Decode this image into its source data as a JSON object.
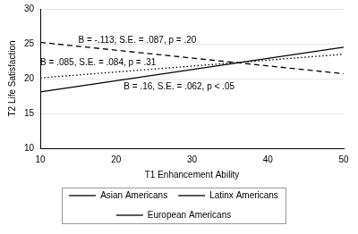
{
  "chart_data": {
    "type": "line",
    "x_label": "T1 Enhancement Ability",
    "y_label": "T2 Life Satisfaction",
    "x": [
      10,
      50
    ],
    "series": [
      {
        "name": "Asian Americans",
        "color": "#000000",
        "line_style": "solid",
        "values": [
          18.1,
          24.5
        ],
        "annotation": "B = .16, S.E. = .062, p < .05"
      },
      {
        "name": "Latinx Americans",
        "color": "#000000",
        "line_style": "dashed",
        "values": [
          25.2,
          20.7
        ],
        "annotation": "B = -.113, S.E. = .087, p = .20"
      },
      {
        "name": "European Americans",
        "color": "#000000",
        "line_style": "dotted",
        "values": [
          20.1,
          23.5
        ],
        "annotation": "B = .085, S.E. = .084, p = .31"
      }
    ],
    "xlim": [
      10,
      50
    ],
    "xticks": [
      10,
      20,
      30,
      40,
      50
    ],
    "ylim": [
      10,
      30
    ],
    "yticks": [
      10,
      15,
      20,
      25,
      30
    ],
    "grid": "y",
    "legend": "bottom"
  }
}
